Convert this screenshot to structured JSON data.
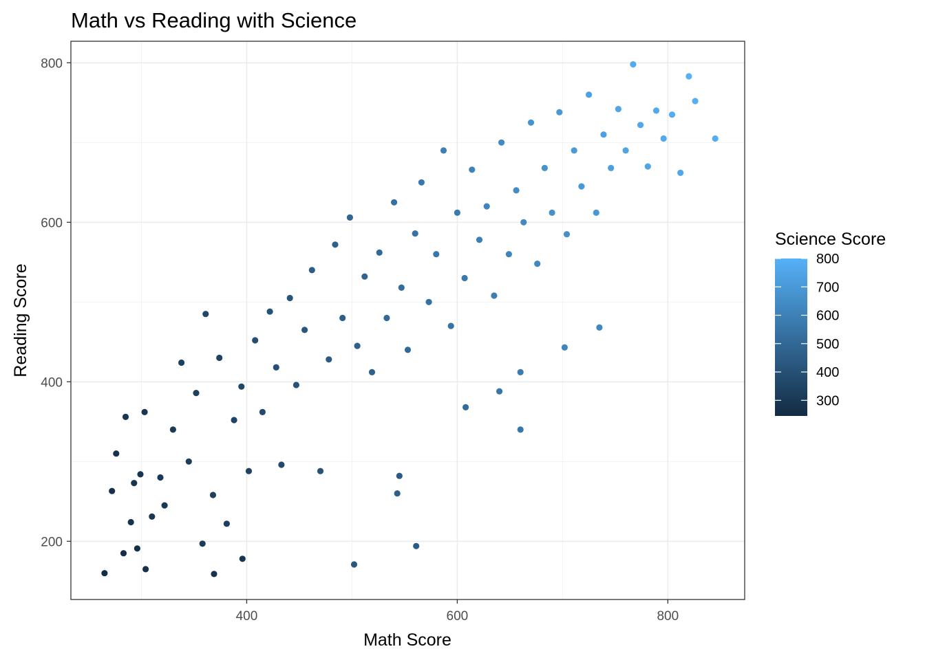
{
  "chart_data": {
    "type": "scatter",
    "title": "Math vs Reading with Science",
    "xlabel": "Math Score",
    "ylabel": "Reading Score",
    "xlim": [
      233,
      873
    ],
    "ylim": [
      127,
      827
    ],
    "x_ticks": [
      400,
      600,
      800
    ],
    "y_ticks": [
      200,
      400,
      600,
      800
    ],
    "x_tick_labels": [
      "400",
      "600",
      "800"
    ],
    "y_tick_labels": [
      "200",
      "400",
      "600",
      "800"
    ],
    "grid": true,
    "theme": "bw",
    "color_variable": "Science Score",
    "color_scale": {
      "low_color": "#132B43",
      "high_color": "#56B1F7",
      "limits": [
        245,
        800
      ],
      "breaks": [
        300,
        400,
        500,
        600,
        700,
        800
      ],
      "break_labels": [
        "300",
        "400",
        "500",
        "600",
        "700",
        "800"
      ]
    },
    "legend_position": "right",
    "points": [
      [
        265,
        160,
        250
      ],
      [
        283,
        185,
        260
      ],
      [
        296,
        191,
        265
      ],
      [
        304,
        165,
        270
      ],
      [
        369,
        159,
        280
      ],
      [
        396,
        178,
        290
      ],
      [
        502,
        171,
        430
      ],
      [
        561,
        194,
        450
      ],
      [
        272,
        263,
        270
      ],
      [
        276,
        310,
        275
      ],
      [
        285,
        356,
        290
      ],
      [
        290,
        224,
        280
      ],
      [
        293,
        273,
        285
      ],
      [
        299,
        284,
        290
      ],
      [
        303,
        362,
        295
      ],
      [
        310,
        231,
        300
      ],
      [
        318,
        280,
        305
      ],
      [
        322,
        245,
        300
      ],
      [
        330,
        340,
        310
      ],
      [
        338,
        424,
        330
      ],
      [
        345,
        300,
        320
      ],
      [
        352,
        386,
        335
      ],
      [
        358,
        197,
        310
      ],
      [
        361,
        485,
        360
      ],
      [
        368,
        258,
        330
      ],
      [
        374,
        430,
        345
      ],
      [
        381,
        222,
        320
      ],
      [
        388,
        352,
        350
      ],
      [
        395,
        394,
        360
      ],
      [
        402,
        288,
        345
      ],
      [
        408,
        452,
        390
      ],
      [
        415,
        362,
        375
      ],
      [
        422,
        488,
        405
      ],
      [
        428,
        418,
        395
      ],
      [
        433,
        296,
        370
      ],
      [
        441,
        505,
        420
      ],
      [
        447,
        396,
        410
      ],
      [
        455,
        465,
        430
      ],
      [
        462,
        540,
        455
      ],
      [
        470,
        288,
        410
      ],
      [
        478,
        428,
        440
      ],
      [
        484,
        572,
        470
      ],
      [
        491,
        480,
        460
      ],
      [
        498,
        606,
        490
      ],
      [
        505,
        445,
        465
      ],
      [
        512,
        532,
        485
      ],
      [
        519,
        412,
        470
      ],
      [
        526,
        562,
        505
      ],
      [
        533,
        480,
        500
      ],
      [
        540,
        625,
        530
      ],
      [
        547,
        518,
        515
      ],
      [
        553,
        440,
        500
      ],
      [
        560,
        586,
        545
      ],
      [
        566,
        650,
        565
      ],
      [
        573,
        500,
        530
      ],
      [
        580,
        560,
        560
      ],
      [
        587,
        690,
        590
      ],
      [
        594,
        470,
        540
      ],
      [
        600,
        612,
        580
      ],
      [
        607,
        530,
        570
      ],
      [
        614,
        666,
        610
      ],
      [
        621,
        578,
        595
      ],
      [
        628,
        620,
        615
      ],
      [
        635,
        508,
        590
      ],
      [
        642,
        700,
        640
      ],
      [
        649,
        560,
        615
      ],
      [
        656,
        640,
        645
      ],
      [
        663,
        600,
        640
      ],
      [
        670,
        725,
        675
      ],
      [
        676,
        548,
        630
      ],
      [
        683,
        668,
        675
      ],
      [
        690,
        612,
        665
      ],
      [
        697,
        738,
        700
      ],
      [
        704,
        585,
        665
      ],
      [
        711,
        690,
        705
      ],
      [
        718,
        645,
        700
      ],
      [
        725,
        760,
        735
      ],
      [
        732,
        612,
        695
      ],
      [
        739,
        710,
        730
      ],
      [
        746,
        668,
        725
      ],
      [
        753,
        742,
        750
      ],
      [
        760,
        690,
        745
      ],
      [
        767,
        798,
        775
      ],
      [
        774,
        722,
        760
      ],
      [
        781,
        670,
        750
      ],
      [
        789,
        740,
        770
      ],
      [
        796,
        705,
        765
      ],
      [
        804,
        735,
        780
      ],
      [
        812,
        662,
        760
      ],
      [
        820,
        783,
        800
      ],
      [
        826,
        752,
        790
      ],
      [
        845,
        705,
        785
      ],
      [
        702,
        443,
        620
      ],
      [
        660,
        340,
        560
      ],
      [
        543,
        260,
        460
      ],
      [
        608,
        368,
        520
      ],
      [
        660,
        412,
        575
      ],
      [
        735,
        468,
        630
      ],
      [
        640,
        388,
        555
      ],
      [
        545,
        282,
        450
      ]
    ]
  }
}
